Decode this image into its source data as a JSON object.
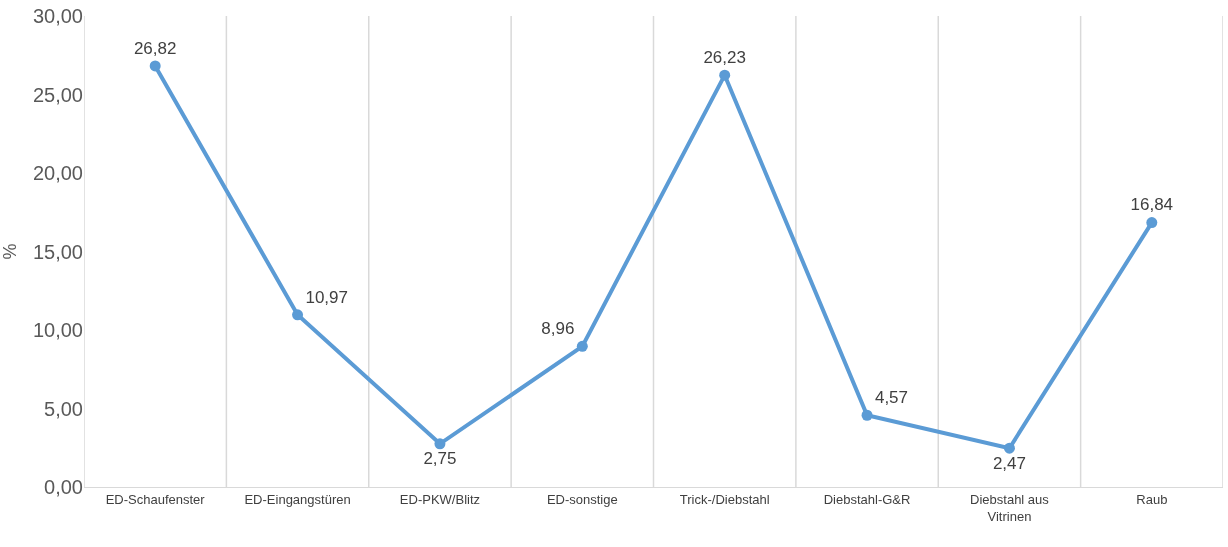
{
  "chart_data": {
    "type": "line",
    "ylabel": "%",
    "categories": [
      "ED-Schaufenster",
      "ED-Eingangstüren",
      "ED-PKW/Blitz",
      "ED-sonstige",
      "Trick-/Diebstahl",
      "Diebstahl-G&R",
      "Diebstahl aus Vitrinen",
      "Raub"
    ],
    "series": [
      {
        "color": "#5b9bd5",
        "values": [
          26.82,
          10.97,
          2.75,
          8.96,
          26.23,
          4.57,
          2.47,
          16.84
        ],
        "value_labels": [
          "26,82",
          "10,97",
          "2,75",
          "8,96",
          "26,23",
          "4,57",
          "2,47",
          "16,84"
        ]
      }
    ],
    "ylim": [
      0,
      30
    ],
    "yticks": [
      {
        "value": 0,
        "label": "0,00"
      },
      {
        "value": 5,
        "label": "5,00"
      },
      {
        "value": 10,
        "label": "10,00"
      },
      {
        "value": 15,
        "label": "15,00"
      },
      {
        "value": 20,
        "label": "20,00"
      },
      {
        "value": 25,
        "label": "25,00"
      },
      {
        "value": 30,
        "label": "30,00"
      }
    ],
    "grid": "x",
    "marker": "circle",
    "line_style": "solid"
  }
}
